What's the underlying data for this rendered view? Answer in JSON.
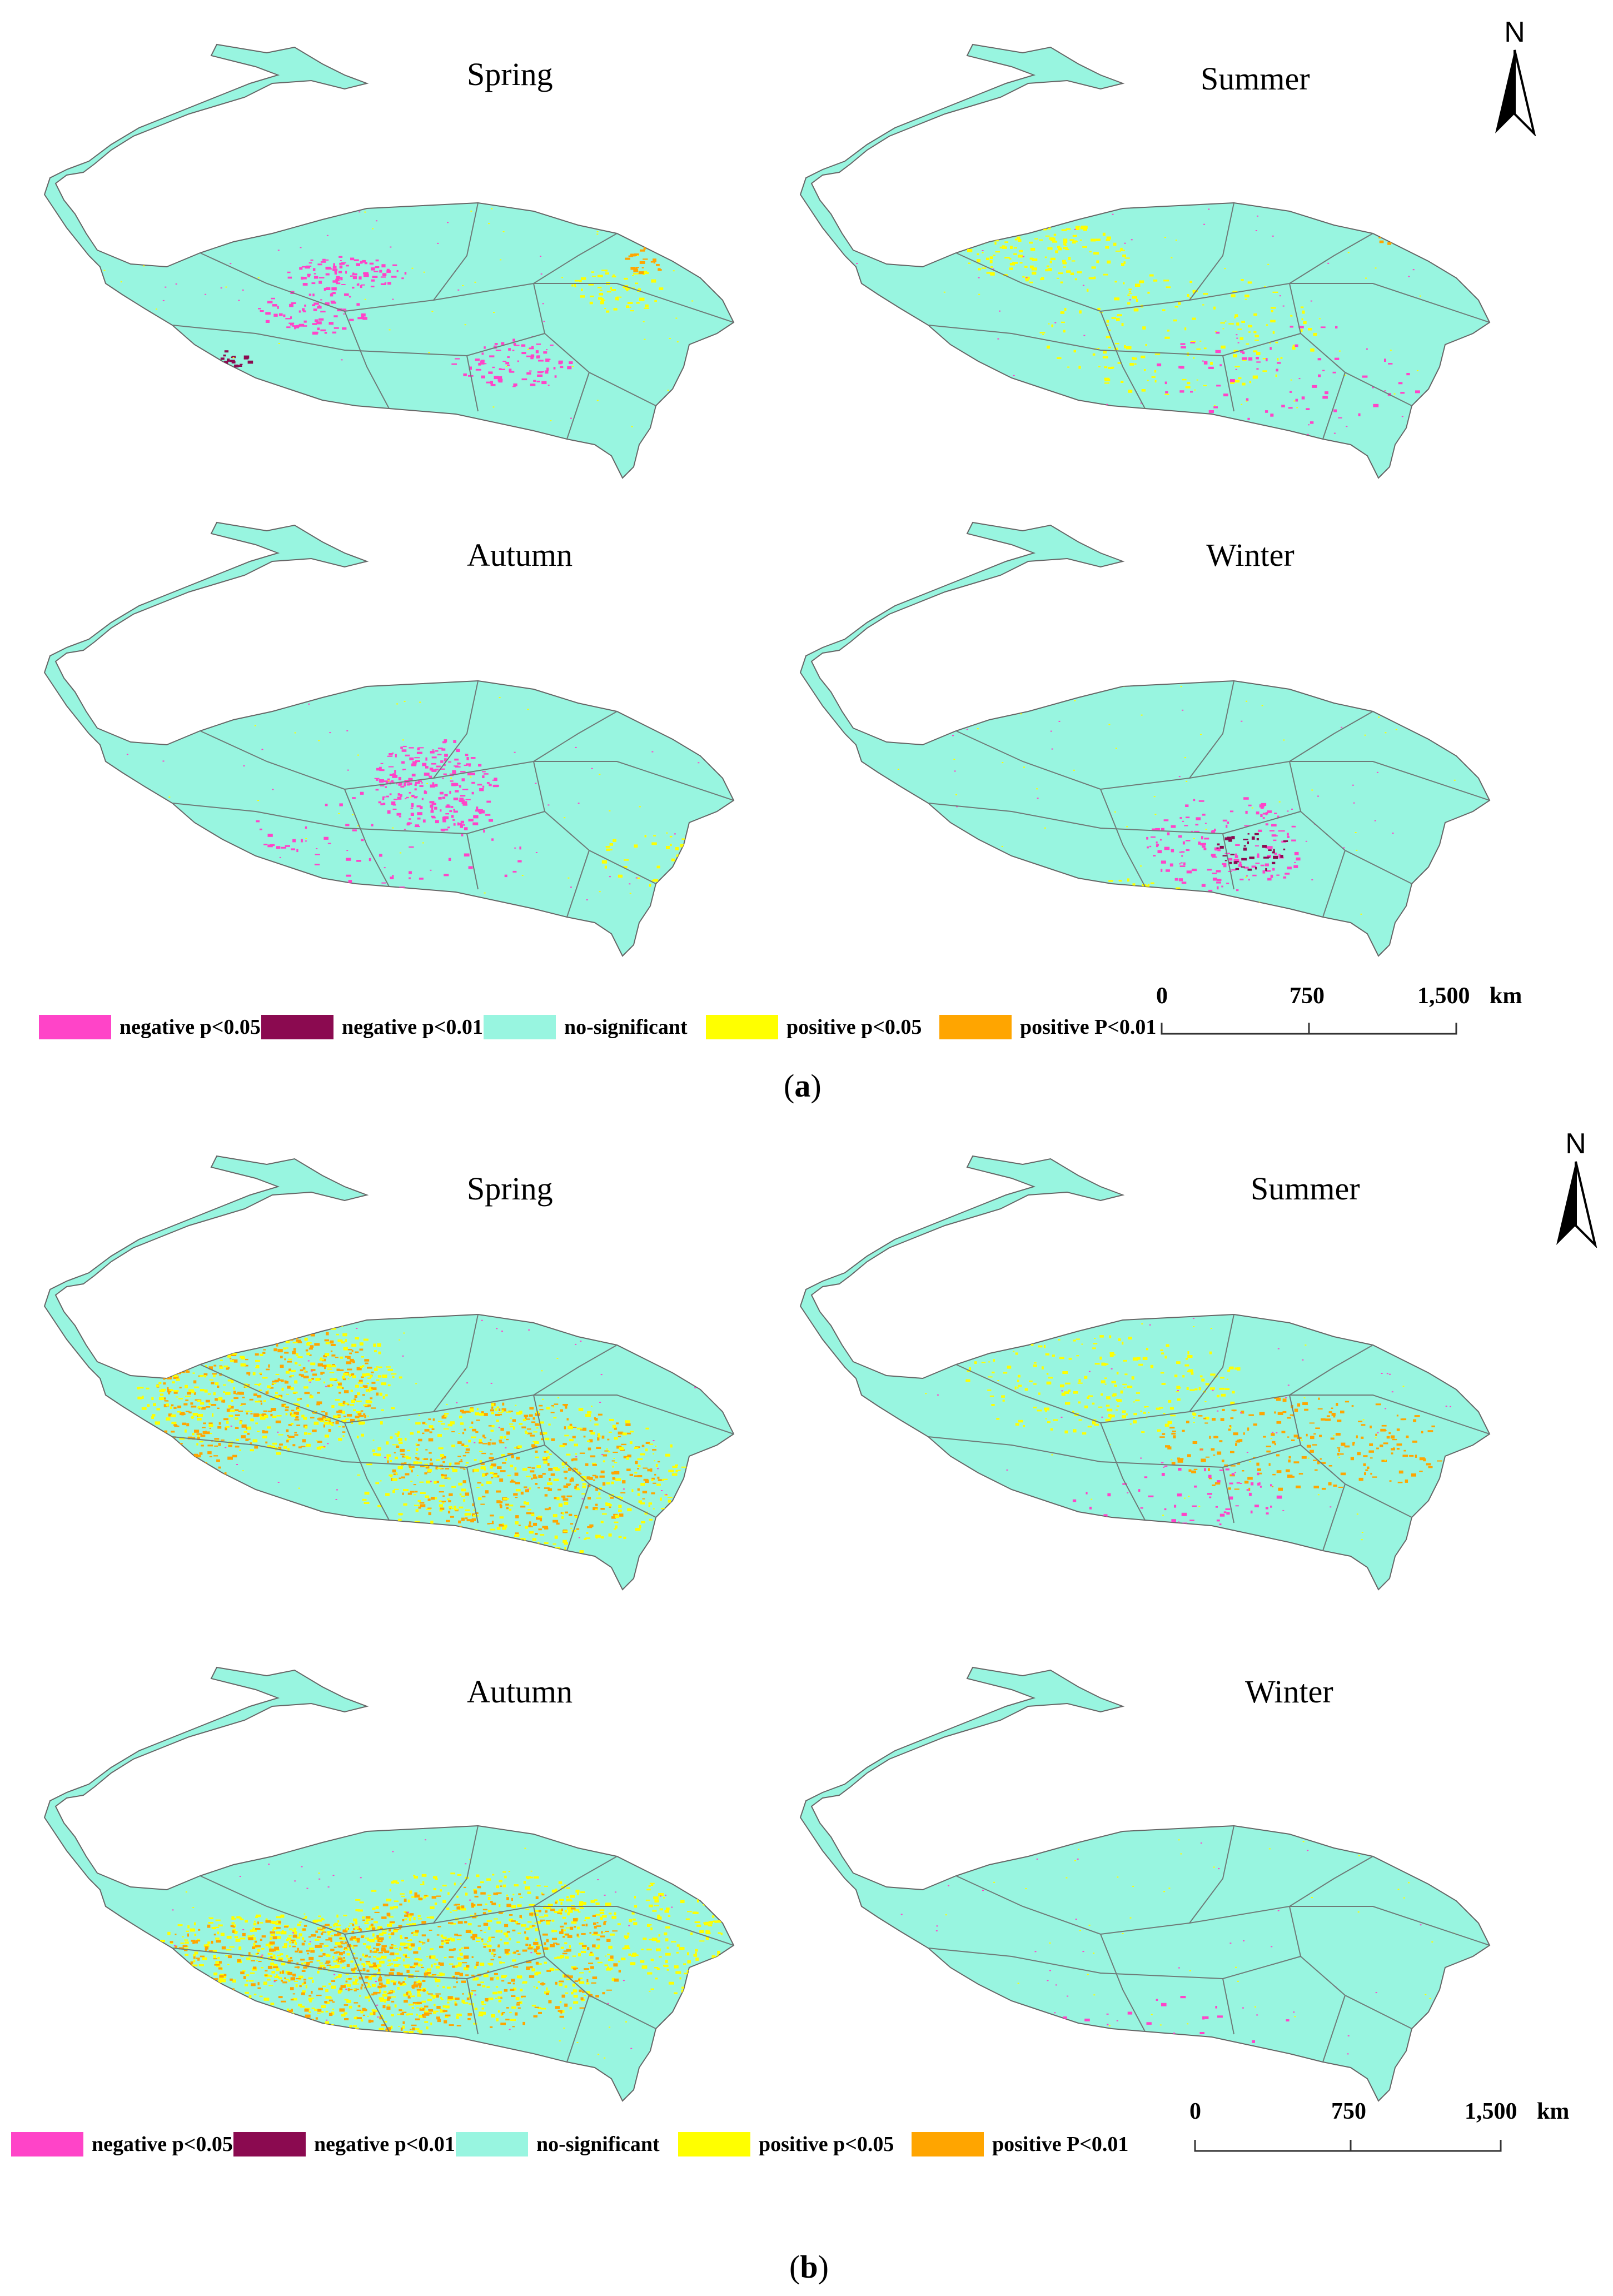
{
  "panels": [
    {
      "id": "a",
      "caption_open": "(",
      "caption_letter": "a",
      "caption_close": ")",
      "north_label": "N",
      "seasons": [
        "Spring",
        "Summer",
        "Autumn",
        "Winter"
      ]
    },
    {
      "id": "b",
      "caption_open": "(",
      "caption_letter": "b",
      "caption_close": ")",
      "north_label": "N",
      "seasons": [
        "Spring",
        "Summer",
        "Autumn",
        "Winter"
      ]
    }
  ],
  "legend": [
    {
      "label": "negative p<0.05",
      "color": "#ff44c8"
    },
    {
      "label": "negative p<0.01",
      "color": "#8b0a50"
    },
    {
      "label": "no-significant",
      "color": "#98f5e0"
    },
    {
      "label": "positive p<0.05",
      "color": "#ffff00"
    },
    {
      "label": "positive P<0.01",
      "color": "#ffa500"
    }
  ],
  "scalebar": {
    "ticks": [
      "0",
      "750",
      "1,500"
    ],
    "unit": "km"
  },
  "map_style": {
    "base_color": "#98f5e0",
    "outline_color": "#666666",
    "boundary_color": "#6e7b78"
  }
}
